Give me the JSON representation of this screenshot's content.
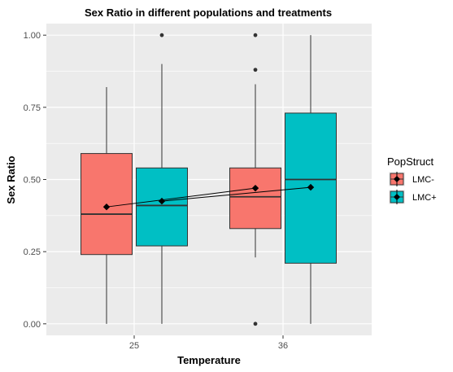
{
  "chart_data": {
    "type": "box",
    "title": "Sex Ratio in different populations and treatments",
    "xlabel": "Temperature",
    "ylabel": "Sex Ratio",
    "categories": [
      "25",
      "36"
    ],
    "ylim": [
      -0.04,
      1.04
    ],
    "yticks": [
      0.0,
      0.25,
      0.5,
      0.75,
      1.0
    ],
    "ytick_labels": [
      "0.00",
      "0.25",
      "0.50",
      "0.75",
      "1.00"
    ],
    "grid": true,
    "legend_position": "right",
    "legend_title": "PopStruct",
    "series": [
      {
        "name": "LMC-",
        "color": "#F8766D",
        "boxes": [
          {
            "category": "25",
            "min": 0.0,
            "q1": 0.24,
            "median": 0.38,
            "q3": 0.59,
            "max": 0.82,
            "mean": 0.405,
            "outliers": []
          },
          {
            "category": "36",
            "min": 0.23,
            "q1": 0.33,
            "median": 0.44,
            "q3": 0.54,
            "max": 0.83,
            "mean": 0.47,
            "outliers": [
              1.0,
              0.88,
              0.0
            ]
          }
        ]
      },
      {
        "name": "LMC+",
        "color": "#00BFC4",
        "boxes": [
          {
            "category": "25",
            "min": 0.0,
            "q1": 0.27,
            "median": 0.41,
            "q3": 0.54,
            "max": 0.9,
            "mean": 0.425,
            "outliers": [
              1.0
            ]
          },
          {
            "category": "36",
            "min": 0.0,
            "q1": 0.21,
            "median": 0.5,
            "q3": 0.73,
            "max": 1.0,
            "mean": 0.473,
            "outliers": []
          }
        ]
      }
    ]
  }
}
